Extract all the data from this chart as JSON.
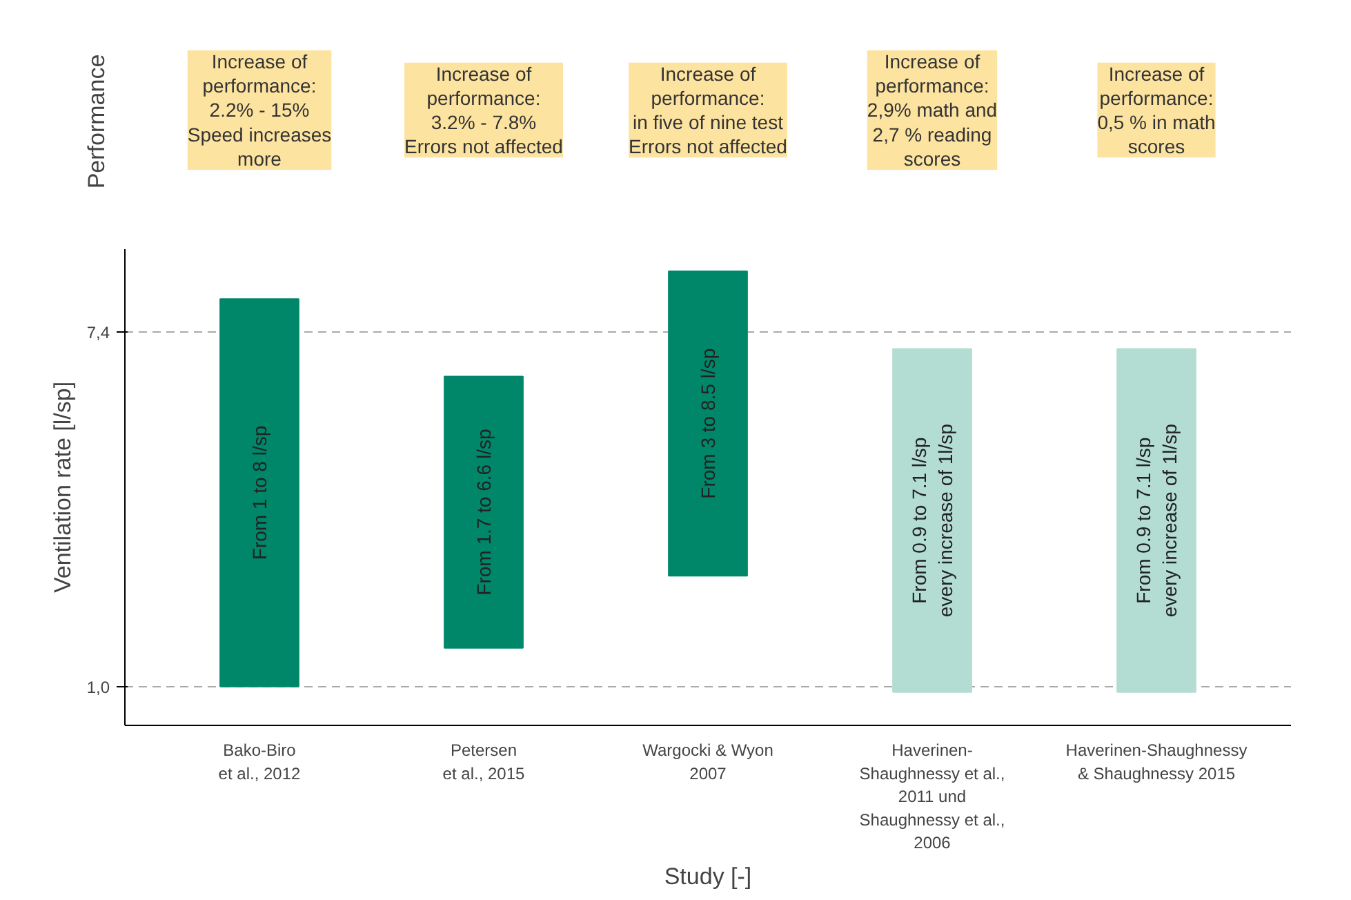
{
  "chart_data": [
    {
      "type": "other",
      "ylabel": "Performance",
      "annotations": [
        "Increase of\nperformance:\n2.2% - 15%\nSpeed increases\nmore",
        "Increase of\nperformance:\n3.2% - 7.8%\nErrors not affected",
        "Increase of\nperformance:\nin five of nine test\nErrors not affected",
        "Increase of\nperformance:\n2,9% math and\n2,7 % reading\nscores",
        "Increase of\nperformance:\n0,5 % in math\nscores"
      ]
    },
    {
      "type": "bar",
      "xlabel": "Study [-]",
      "ylabel": "Ventilation rate [l/sp]",
      "categories": [
        "Bako-Biro\net al., 2012",
        "Petersen\net al., 2015",
        "Wargocki & Wyon\n2007",
        "Haverinen-\nShaughnessy et al.,\n2011 und\nShaughnessy et al.,\n2006",
        "Haverinen-Shaughnessy\n& Shaughnessy 2015"
      ],
      "values": [
        7,
        4.9,
        5.5,
        6.2,
        6.2
      ],
      "base": [
        1,
        1.7,
        3,
        0.9,
        0.9
      ],
      "colors": [
        "#00876a",
        "#00876a",
        "#00876a",
        "#b3ddd2",
        "#b3ddd2"
      ],
      "ylim": [
        0.3,
        8.9
      ],
      "yticks": [
        {
          "value": 1,
          "label": "1,0"
        },
        {
          "value": 7.4,
          "label": "7,4"
        }
      ],
      "grid": "y",
      "annotations": [
        "From 1 to 8 l/sp",
        "From 1.7 to 6.6 l/sp",
        "From 3 to 8.5 l/sp",
        "From 0.9 to 7.1 l/sp\nevery increase of 1l/sp",
        "From 0.9 to 7.1 l/sp\nevery increase of 1l/sp"
      ]
    }
  ]
}
